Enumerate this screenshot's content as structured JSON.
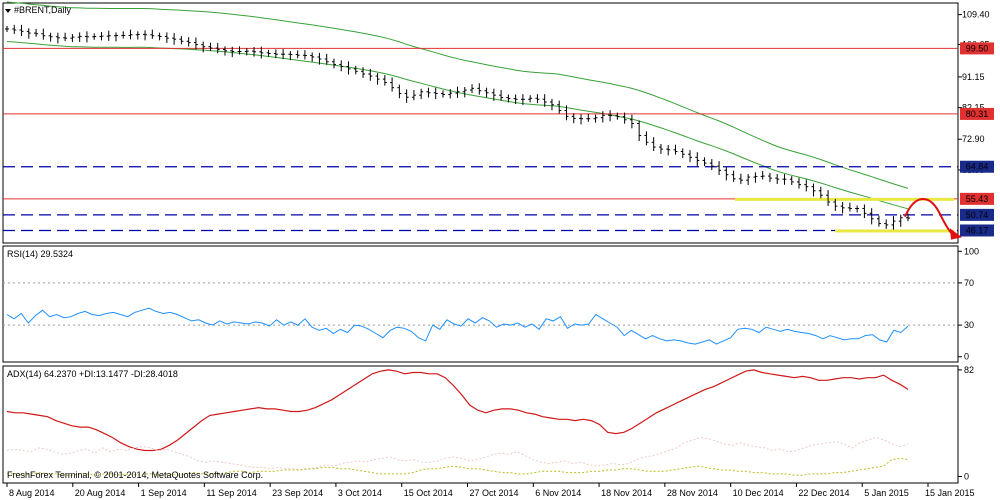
{
  "chart_data": [
    {
      "type": "candlestick",
      "title": "#BRENT,Daily",
      "ylim": [
        42.5,
        112.8
      ],
      "y_ticks": [
        109.4,
        100.65,
        91.15,
        82.15,
        72.9,
        63.9
      ],
      "x_labels": [
        "8 Aug 2014",
        "20 Aug 2014",
        "1 Sep 2014",
        "11 Sep 2014",
        "23 Sep 2014",
        "3 Oct 2014",
        "15 Oct 2014",
        "27 Oct 2014",
        "6 Nov 2014",
        "18 Nov 2014",
        "28 Nov 2014",
        "10 Dec 2014",
        "22 Dec 2014",
        "5 Jan 2015",
        "15 Jan 2015"
      ],
      "price_close": [
        105.2,
        104.9,
        104.5,
        104.0,
        103.8,
        103.2,
        102.9,
        102.6,
        102.5,
        102.8,
        103.0,
        102.9,
        103.0,
        103.1,
        103.2,
        103.3,
        103.3,
        103.5,
        103.6,
        103.5,
        103.2,
        103.0,
        102.5,
        102.2,
        101.6,
        101.2,
        100.6,
        100.0,
        99.6,
        99.2,
        98.8,
        98.6,
        98.6,
        98.7,
        98.5,
        98.2,
        98.0,
        97.8,
        97.8,
        97.7,
        97.5,
        97.4,
        97.0,
        96.4,
        95.6,
        94.8,
        94.2,
        93.5,
        92.8,
        92.0,
        91.4,
        90.5,
        89.5,
        88.0,
        86.3,
        85.2,
        85.8,
        86.8,
        86.5,
        86.3,
        86.0,
        86.4,
        86.8,
        87.3,
        87.8,
        87.1,
        86.5,
        85.8,
        85.1,
        84.8,
        84.6,
        84.6,
        84.9,
        84.6,
        83.8,
        83.0,
        81.3,
        79.6,
        79.0,
        78.9,
        78.9,
        79.2,
        79.9,
        79.8,
        79.5,
        78.6,
        77.5,
        74.0,
        72.0,
        70.6,
        70.0,
        69.8,
        69.3,
        68.5,
        67.6,
        66.7,
        65.9,
        65.0,
        63.8,
        62.5,
        61.3,
        60.9,
        61.8,
        62.0,
        62.1,
        61.5,
        61.2,
        61.2,
        60.4,
        59.6,
        59.0,
        57.8,
        56.5,
        54.5,
        53.3,
        52.8,
        52.6,
        52.6,
        51.2,
        49.6,
        48.2,
        47.8,
        48.9,
        49.9,
        49.8
      ],
      "resistance_levels": [
        {
          "label": "99.50",
          "value": 99.5
        },
        {
          "label": "80.31",
          "value": 80.31
        },
        {
          "label": "64.84",
          "value": 64.84
        },
        {
          "label": "55.43",
          "value": 55.43
        },
        {
          "label": "50.74",
          "value": 50.74
        },
        {
          "label": "46.17",
          "value": 46.17
        }
      ],
      "colors": {
        "candle": "#000000",
        "band": "#39a239",
        "hline": "#e03030",
        "dash": "#0000aa",
        "arrow": "#e01010",
        "zone": "#e8e840"
      }
    },
    {
      "type": "line",
      "title": "RSI(14) 29.5324",
      "ylim": [
        -5,
        105
      ],
      "y_ticks": [
        100,
        70,
        30,
        0
      ],
      "values": [
        40,
        36,
        41,
        32,
        39,
        44,
        38,
        40,
        37,
        38,
        41,
        43,
        40,
        39,
        41,
        42,
        40,
        38,
        42,
        44,
        46,
        43,
        41,
        42,
        40,
        37,
        34,
        35,
        32,
        30,
        34,
        31,
        33,
        32,
        31,
        33,
        32,
        29,
        35,
        30,
        33,
        30,
        36,
        28,
        25,
        27,
        22,
        26,
        23,
        30,
        29,
        26,
        22,
        18,
        25,
        28,
        27,
        24,
        18,
        15,
        30,
        26,
        35,
        31,
        29,
        36,
        32,
        37,
        34,
        28,
        31,
        30,
        32,
        28,
        31,
        26,
        36,
        34,
        38,
        27,
        31,
        30,
        31,
        40,
        36,
        32,
        28,
        20,
        25,
        21,
        17,
        20,
        17,
        15,
        16,
        15,
        13,
        12,
        14,
        16,
        12,
        15,
        18,
        26,
        27,
        26,
        23,
        28,
        26,
        24,
        26,
        24,
        23,
        22,
        20,
        17,
        20,
        18,
        16,
        17,
        17,
        20,
        21,
        16,
        14,
        25,
        23,
        29
      ],
      "colors": {
        "line": "#1e90ff"
      }
    },
    {
      "type": "line",
      "title": "ADX(14) 64.2370 +DI:13.1477 -DI:28.4018",
      "ylim": [
        -5,
        85
      ],
      "y_ticks": [
        82,
        0
      ],
      "series": [
        {
          "values": [
            50,
            49,
            49,
            48,
            47,
            46,
            43,
            41,
            39,
            38,
            38,
            36,
            33,
            30,
            26,
            23,
            21,
            20,
            20,
            21,
            24,
            28,
            33,
            38,
            43,
            47,
            48,
            49,
            50,
            51,
            52,
            53,
            52,
            52,
            51,
            50,
            50,
            51,
            53,
            56,
            59,
            63,
            67,
            71,
            75,
            79,
            81,
            82,
            81,
            79,
            80,
            80,
            79,
            79,
            76,
            70,
            63,
            55,
            51,
            49,
            51,
            52,
            52,
            51,
            49,
            48,
            46,
            45,
            44,
            44,
            43,
            44,
            43,
            40,
            34,
            33,
            34,
            37,
            41,
            45,
            49,
            52,
            55,
            58,
            61,
            64,
            67,
            69,
            72,
            75,
            78,
            81,
            82,
            80,
            79,
            78,
            77,
            76,
            77,
            76,
            74,
            74,
            75,
            76,
            76,
            75,
            76,
            76,
            78,
            74,
            71,
            67
          ],
          "color": "#d01818"
        },
        {
          "values": [
            20,
            21,
            20,
            19,
            22,
            21,
            19,
            17,
            18,
            20,
            21,
            18,
            22,
            19,
            21,
            20,
            22,
            23,
            22,
            20,
            21,
            19,
            17,
            15,
            12,
            11,
            12,
            11,
            10,
            9,
            8,
            7,
            7,
            6,
            7,
            6,
            6,
            5,
            6,
            7,
            9,
            8,
            10,
            11,
            12,
            11,
            13,
            14,
            15,
            13,
            12,
            13,
            11,
            11,
            12,
            14,
            15,
            14,
            12,
            13,
            15,
            17,
            18,
            17,
            19,
            16,
            13,
            11,
            10,
            11,
            12,
            10,
            11,
            9,
            8,
            9,
            10,
            9,
            10,
            13,
            15,
            16,
            18,
            20,
            22,
            26,
            28,
            30,
            29,
            27,
            25,
            24,
            26,
            24,
            23,
            22,
            20,
            21,
            19,
            20,
            22,
            24,
            25,
            26,
            27,
            25,
            22,
            26,
            28,
            30,
            28,
            25,
            23,
            25
          ],
          "color": "#f0c8c8"
        },
        {
          "values": [
            2,
            2,
            1,
            2,
            3,
            2,
            2,
            1,
            1,
            2,
            2,
            1,
            2,
            2,
            1,
            2,
            1,
            2,
            2,
            1,
            2,
            1,
            2,
            3,
            2,
            2,
            2,
            3,
            4,
            4,
            3,
            4,
            4,
            4,
            5,
            5,
            5,
            6,
            6,
            7,
            7,
            6,
            6,
            5,
            4,
            3,
            2,
            2,
            2,
            2,
            3,
            5,
            6,
            6,
            7,
            8,
            7,
            6,
            6,
            5,
            4,
            3,
            3,
            2,
            2,
            3,
            4,
            4,
            4,
            3,
            3,
            3,
            4,
            4,
            5,
            5,
            6,
            6,
            5,
            4,
            4,
            4,
            5,
            6,
            7,
            8,
            7,
            6,
            5,
            5,
            4,
            4,
            3,
            3,
            2,
            2,
            2,
            1,
            1,
            2,
            2,
            2,
            3,
            3,
            4,
            5,
            6,
            7,
            8,
            13,
            14,
            13
          ],
          "color": "#bcbc20"
        }
      ]
    }
  ],
  "footer": "FreshForex Terminal, © 2001-2014, MetaQuotes Software Corp."
}
